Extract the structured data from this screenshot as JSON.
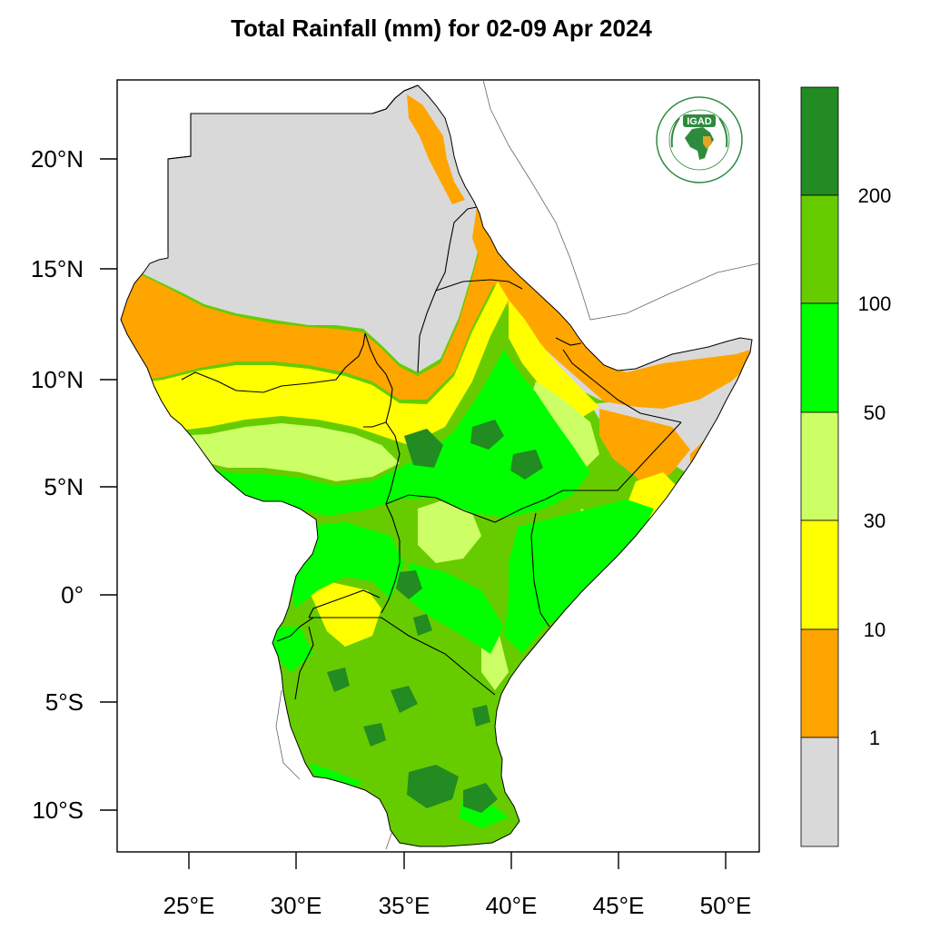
{
  "title": "Total Rainfall (mm) for 02-09 Apr 2024",
  "lat_labels": [
    "20°N",
    "15°N",
    "10°N",
    "5°N",
    "0°",
    "5°S",
    "10°S"
  ],
  "lon_labels": [
    "25°E",
    "30°E",
    "35°E",
    "40°E",
    "45°E",
    "50°E"
  ],
  "legend": {
    "labels": [
      "200",
      "100",
      "50",
      "30",
      "10",
      "1"
    ],
    "colors": [
      "#228b22",
      "#66cc00",
      "#00ff00",
      "#ccff66",
      "#ffff00",
      "#ffa500",
      "#d9d9d9"
    ]
  },
  "logo": {
    "text": "IGAD",
    "color": "#2e8b3e",
    "accent": "#e5a32a"
  },
  "colors": {
    "no_rain": "#d9d9d9",
    "land_outline": "#000000"
  }
}
